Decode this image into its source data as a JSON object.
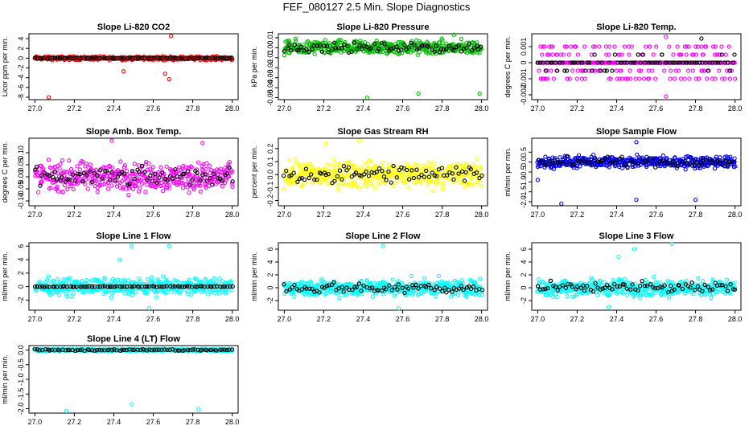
{
  "title": "FEF_080127  2.5 Min. Slope Diagnostics",
  "chart_data": [
    {
      "type": "scatter",
      "title": "Slope Li-820 CO2",
      "ylabel": "Licor ppm per min.",
      "xlabel": "",
      "xlim": [
        26.97,
        28.03
      ],
      "ylim": [
        -8.5,
        5.0
      ],
      "xticks": [
        "27.0",
        "27.2",
        "27.4",
        "27.6",
        "27.8",
        "28.0"
      ],
      "yticks": [
        "-8",
        "-6",
        "-4",
        "-2",
        "0",
        "2",
        "4"
      ],
      "ytick_values": [
        -8,
        -6,
        -4,
        -2,
        0,
        2,
        4
      ],
      "series": [
        {
          "name": "all",
          "color": "#ff0000",
          "spread": 0.6,
          "outliers": [
            [
              27.07,
              -8.0
            ],
            [
              27.69,
              4.5
            ],
            [
              27.66,
              -3.2
            ],
            [
              27.68,
              -4.3
            ],
            [
              27.45,
              -2.7
            ]
          ]
        },
        {
          "name": "selected",
          "color": "#000000",
          "spread": 0.15
        }
      ]
    },
    {
      "type": "scatter",
      "title": "Slope Li-820 Pressure",
      "ylabel": "kPa per min.",
      "xlabel": "",
      "xlim": [
        26.97,
        28.03
      ],
      "ylim": [
        -0.052,
        0.014
      ],
      "xticks": [
        "27.0",
        "27.2",
        "27.4",
        "27.6",
        "27.8",
        "28.0"
      ],
      "yticks": [
        "-0.05",
        "-0.04",
        "-0.03",
        "-0.02",
        "-0.01",
        "0.00",
        "0.01"
      ],
      "ytick_values": [
        -0.05,
        -0.04,
        -0.03,
        -0.02,
        -0.01,
        0.0,
        0.01
      ],
      "series": [
        {
          "name": "all",
          "color": "#00c000",
          "spread": 0.012,
          "outliers": [
            [
              27.42,
              -0.05
            ],
            [
              27.68,
              -0.046
            ],
            [
              27.99,
              -0.046
            ],
            [
              27.86,
              0.013
            ]
          ]
        },
        {
          "name": "selected",
          "color": "#000000",
          "spread": 0.008
        }
      ]
    },
    {
      "type": "scatter",
      "title": "Slope Li-820 Temp.",
      "ylabel": "degrees C per min.",
      "xlabel": "",
      "xlim": [
        26.97,
        28.03
      ],
      "ylim": [
        -0.0023,
        0.0018
      ],
      "xticks": [
        "27.0",
        "27.2",
        "27.4",
        "27.6",
        "27.8",
        "28.0"
      ],
      "yticks": [
        "-0.002",
        "-0.001",
        "0",
        "0.001"
      ],
      "ytick_values": [
        -0.002,
        -0.001,
        0,
        0.001
      ],
      "series": [
        {
          "name": "all",
          "color": "#ff00ff",
          "spread": 0.001,
          "levels": [
            -0.001,
            -0.0005,
            0,
            0.0005,
            0.001
          ],
          "outliers": [
            [
              27.65,
              0.0016
            ],
            [
              27.65,
              -0.0021
            ]
          ]
        },
        {
          "name": "selected",
          "color": "#000000",
          "spread": 0.0003,
          "levels": [
            -0.0005,
            0,
            0.0005
          ],
          "outliers": [
            [
              27.83,
              0.0015
            ]
          ]
        }
      ]
    },
    {
      "type": "scatter",
      "title": "Slope Amb. Box Temp.",
      "ylabel": "degrees C per min.",
      "xlabel": "",
      "xlim": [
        26.97,
        28.03
      ],
      "ylim": [
        -0.12,
        0.16
      ],
      "xticks": [
        "27.0",
        "27.2",
        "27.4",
        "27.6",
        "27.8",
        "28.0"
      ],
      "yticks": [
        "-0.10",
        "-0.05",
        "0.00",
        "0.05",
        "0.10"
      ],
      "ytick_values": [
        -0.1,
        -0.05,
        0.0,
        0.05,
        0.1
      ],
      "series": [
        {
          "name": "all",
          "color": "#ff00ff",
          "spread": 0.1,
          "outliers": [
            [
              27.39,
              0.15
            ],
            [
              27.85,
              0.14
            ]
          ]
        },
        {
          "name": "selected",
          "color": "#000000",
          "spread": 0.06
        }
      ]
    },
    {
      "type": "scatter",
      "title": "Slope Gas Stream RH",
      "ylabel": "percent per min.",
      "xlabel": "",
      "xlim": [
        26.97,
        28.03
      ],
      "ylim": [
        -0.24,
        0.28
      ],
      "xticks": [
        "27.0",
        "27.2",
        "27.4",
        "27.6",
        "27.8",
        "28.0"
      ],
      "yticks": [
        "-0.2",
        "-0.1",
        "0.0",
        "0.1",
        "0.2"
      ],
      "ytick_values": [
        -0.2,
        -0.1,
        0.0,
        0.1,
        0.2
      ],
      "series": [
        {
          "name": "all",
          "color": "#ffff00",
          "spread": 0.17,
          "outliers": [
            [
              27.38,
              0.26
            ],
            [
              27.21,
              0.24
            ]
          ]
        },
        {
          "name": "selected",
          "color": "#000000",
          "spread": 0.12
        }
      ]
    },
    {
      "type": "scatter",
      "title": "Slope Sample Flow",
      "ylabel": "ml/min per min.",
      "xlabel": "",
      "xlim": [
        26.97,
        28.03
      ],
      "ylim": [
        -2.2,
        1.2
      ],
      "xticks": [
        "27.0",
        "27.2",
        "27.4",
        "27.6",
        "27.8",
        "28.0"
      ],
      "yticks": [
        "-2.0",
        "-1.5",
        "-1.0",
        "-0.5",
        "0.0",
        "0.5"
      ],
      "ytick_values": [
        -2.0,
        -1.5,
        -1.0,
        -0.5,
        0.0,
        0.5
      ],
      "series": [
        {
          "name": "all",
          "color": "#0000ff",
          "spread": 0.5,
          "outliers": [
            [
              27.12,
              -2.1
            ],
            [
              27.5,
              -1.9
            ],
            [
              27.8,
              -1.9
            ],
            [
              27.5,
              1.0
            ],
            [
              27.0,
              -0.9
            ]
          ]
        },
        {
          "name": "selected",
          "color": "#000000",
          "spread": 0.4
        }
      ]
    },
    {
      "type": "scatter",
      "title": "Slope Line 1 Flow",
      "ylabel": "ml/min per min.",
      "xlabel": "",
      "xlim": [
        26.97,
        28.03
      ],
      "ylim": [
        -3.5,
        6.5
      ],
      "xticks": [
        "27.0",
        "27.2",
        "27.4",
        "27.6",
        "27.8",
        "28.0"
      ],
      "yticks": [
        "-2",
        "0",
        "2",
        "4",
        "6"
      ],
      "ytick_values": [
        -2,
        0,
        2,
        4,
        6
      ],
      "series": [
        {
          "name": "all",
          "color": "#00ffff",
          "spread": 2.0,
          "outliers": [
            [
              27.49,
              6.0
            ],
            [
              27.68,
              6.0
            ],
            [
              27.43,
              4.0
            ],
            [
              27.58,
              -3.2
            ]
          ]
        },
        {
          "name": "selected",
          "color": "#000000",
          "spread": 0.1
        }
      ]
    },
    {
      "type": "scatter",
      "title": "Slope Line 2 Flow",
      "ylabel": "ml/min per min.",
      "xlabel": "",
      "xlim": [
        26.97,
        28.03
      ],
      "ylim": [
        -3.5,
        7.0
      ],
      "xticks": [
        "27.0",
        "27.2",
        "27.4",
        "27.6",
        "27.8",
        "28.0"
      ],
      "yticks": [
        "-2",
        "0",
        "2",
        "4",
        "6"
      ],
      "ytick_values": [
        -2,
        0,
        2,
        4,
        6
      ],
      "series": [
        {
          "name": "all",
          "color": "#00ffff",
          "spread": 2.2,
          "outliers": [
            [
              27.5,
              6.5
            ],
            [
              27.58,
              -3.2
            ]
          ]
        },
        {
          "name": "selected",
          "color": "#000000",
          "spread": 1.4
        }
      ]
    },
    {
      "type": "scatter",
      "title": "Slope Line 3 Flow",
      "ylabel": "ml/min per min.",
      "xlabel": "",
      "xlim": [
        26.97,
        28.03
      ],
      "ylim": [
        -3.5,
        7.0
      ],
      "xticks": [
        "27.0",
        "27.2",
        "27.4",
        "27.6",
        "27.8",
        "28.0"
      ],
      "yticks": [
        "-2",
        "0",
        "2",
        "4",
        "6"
      ],
      "ytick_values": [
        -2,
        0,
        2,
        4,
        6
      ],
      "series": [
        {
          "name": "all",
          "color": "#00ffff",
          "spread": 2.2,
          "outliers": [
            [
              27.49,
              6.0
            ],
            [
              27.41,
              4.8
            ],
            [
              27.68,
              6.8
            ],
            [
              27.36,
              -3.0
            ]
          ]
        },
        {
          "name": "selected",
          "color": "#000000",
          "spread": 1.4
        }
      ]
    },
    {
      "type": "scatter",
      "title": "Slope Line 4 (LT) Flow",
      "ylabel": "ml/min per min.",
      "xlabel": "",
      "xlim": [
        26.97,
        28.03
      ],
      "ylim": [
        -2.15,
        0.15
      ],
      "xticks": [
        "27.0",
        "27.2",
        "27.4",
        "27.6",
        "27.8",
        "28.0"
      ],
      "yticks": [
        "-2.0",
        "-1.5",
        "-1.0",
        "-0.5",
        "0.0"
      ],
      "ytick_values": [
        -2.0,
        -1.5,
        -1.0,
        -0.5,
        0.0
      ],
      "series": [
        {
          "name": "all",
          "color": "#00ffff",
          "spread": 0.06,
          "outliers": [
            [
              27.16,
              -2.08
            ],
            [
              27.49,
              -1.85
            ],
            [
              27.83,
              -2.02
            ]
          ]
        },
        {
          "name": "selected",
          "color": "#000000",
          "spread": 0.05
        }
      ]
    }
  ]
}
